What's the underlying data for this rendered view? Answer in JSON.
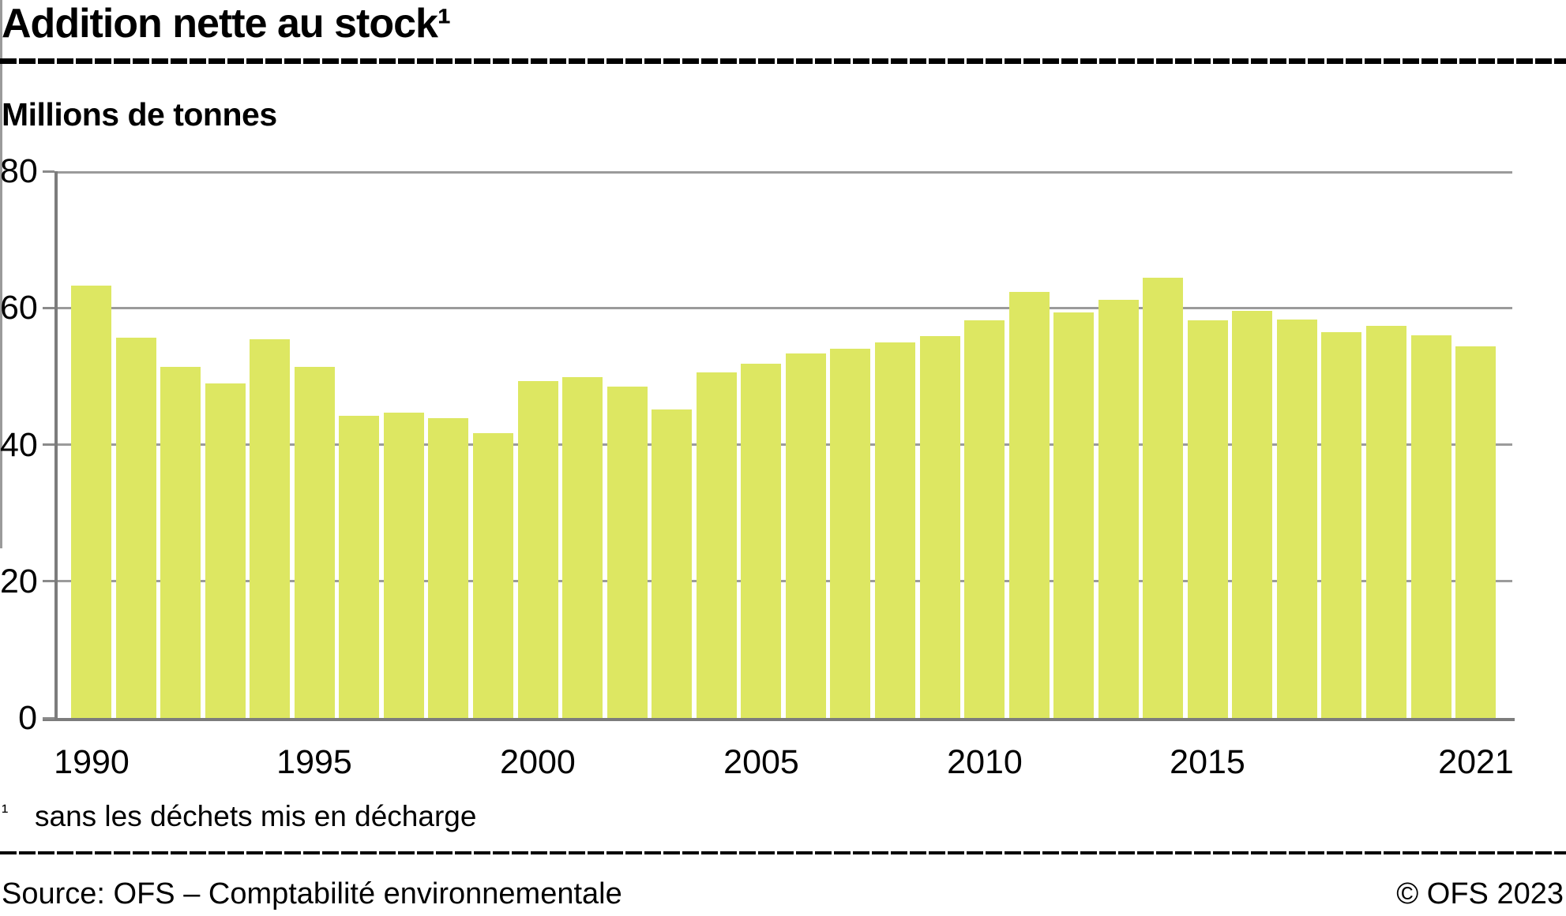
{
  "header": {
    "title": "Addition nette au stock¹",
    "subtitle": "Millions de tonnes"
  },
  "footnote": {
    "marker": "¹",
    "text": "sans les déchets mis en décharge"
  },
  "footer": {
    "source": "Source: OFS – Comptabilité environnementale",
    "copyright": "© OFS 2023"
  },
  "colors": {
    "bar": "#dde762",
    "gridline": "#9b9b9b",
    "axis": "#7c7c7c",
    "rule": "#000000"
  },
  "chart_data": {
    "type": "bar",
    "title": "Addition nette au stock¹",
    "xlabel": "",
    "ylabel": "Millions de tonnes",
    "ylim": [
      0,
      80
    ],
    "yticks": [
      0,
      20,
      40,
      60,
      80
    ],
    "grid": "horizontal",
    "legend": "none",
    "categories": [
      1990,
      1991,
      1992,
      1993,
      1994,
      1995,
      1996,
      1997,
      1998,
      1999,
      2000,
      2001,
      2002,
      2003,
      2004,
      2005,
      2006,
      2007,
      2008,
      2009,
      2010,
      2011,
      2012,
      2013,
      2014,
      2015,
      2016,
      2017,
      2018,
      2019,
      2020,
      2021
    ],
    "values": [
      63.3,
      55.7,
      51.4,
      48.9,
      55.4,
      51.4,
      44.2,
      44.7,
      43.9,
      41.7,
      49.3,
      49.9,
      48.5,
      45.2,
      50.6,
      51.8,
      53.3,
      54.0,
      55.0,
      55.9,
      58.2,
      62.3,
      59.3,
      61.2,
      64.4,
      58.2,
      59.6,
      58.3,
      56.5,
      57.4,
      56.0,
      54.4
    ],
    "x_tick_labels": [
      {
        "index": 0,
        "label": "1990"
      },
      {
        "index": 5,
        "label": "1995"
      },
      {
        "index": 10,
        "label": "2000"
      },
      {
        "index": 15,
        "label": "2005"
      },
      {
        "index": 20,
        "label": "2010"
      },
      {
        "index": 25,
        "label": "2015"
      },
      {
        "index": 31,
        "label": "2021"
      }
    ]
  }
}
